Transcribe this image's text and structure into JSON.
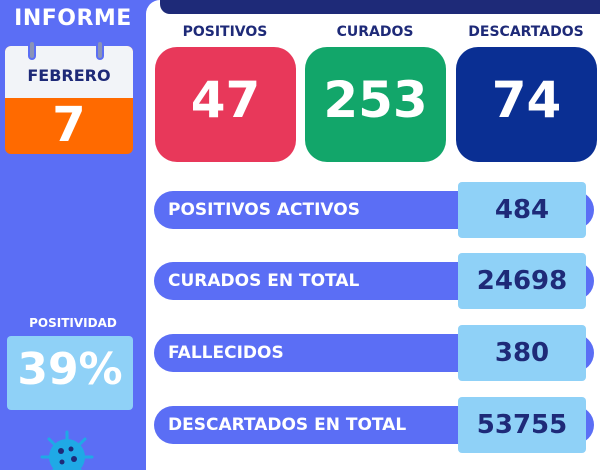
{
  "sidebar": {
    "title": "INFORME",
    "calendar": {
      "month": "FEBRERO",
      "day": "7"
    },
    "positivity": {
      "label": "POSITIVIDAD",
      "value": "39%"
    }
  },
  "stats": [
    {
      "label": "POSITIVOS",
      "value": "47",
      "color": "#e8385a"
    },
    {
      "label": "CURADOS",
      "value": "253",
      "color": "#12a66a"
    },
    {
      "label": "DESCARTADOS",
      "value": "74",
      "color": "#0a2f93"
    }
  ],
  "totals": [
    {
      "label": "POSITIVOS ACTIVOS",
      "value": "484"
    },
    {
      "label": "CURADOS EN TOTAL",
      "value": "24698"
    },
    {
      "label": "FALLECIDOS",
      "value": "380"
    },
    {
      "label": "DESCARTADOS EN TOTAL",
      "value": "53755"
    }
  ],
  "icons": {
    "virus": "virus-icon",
    "calendar": "calendar-icon"
  }
}
